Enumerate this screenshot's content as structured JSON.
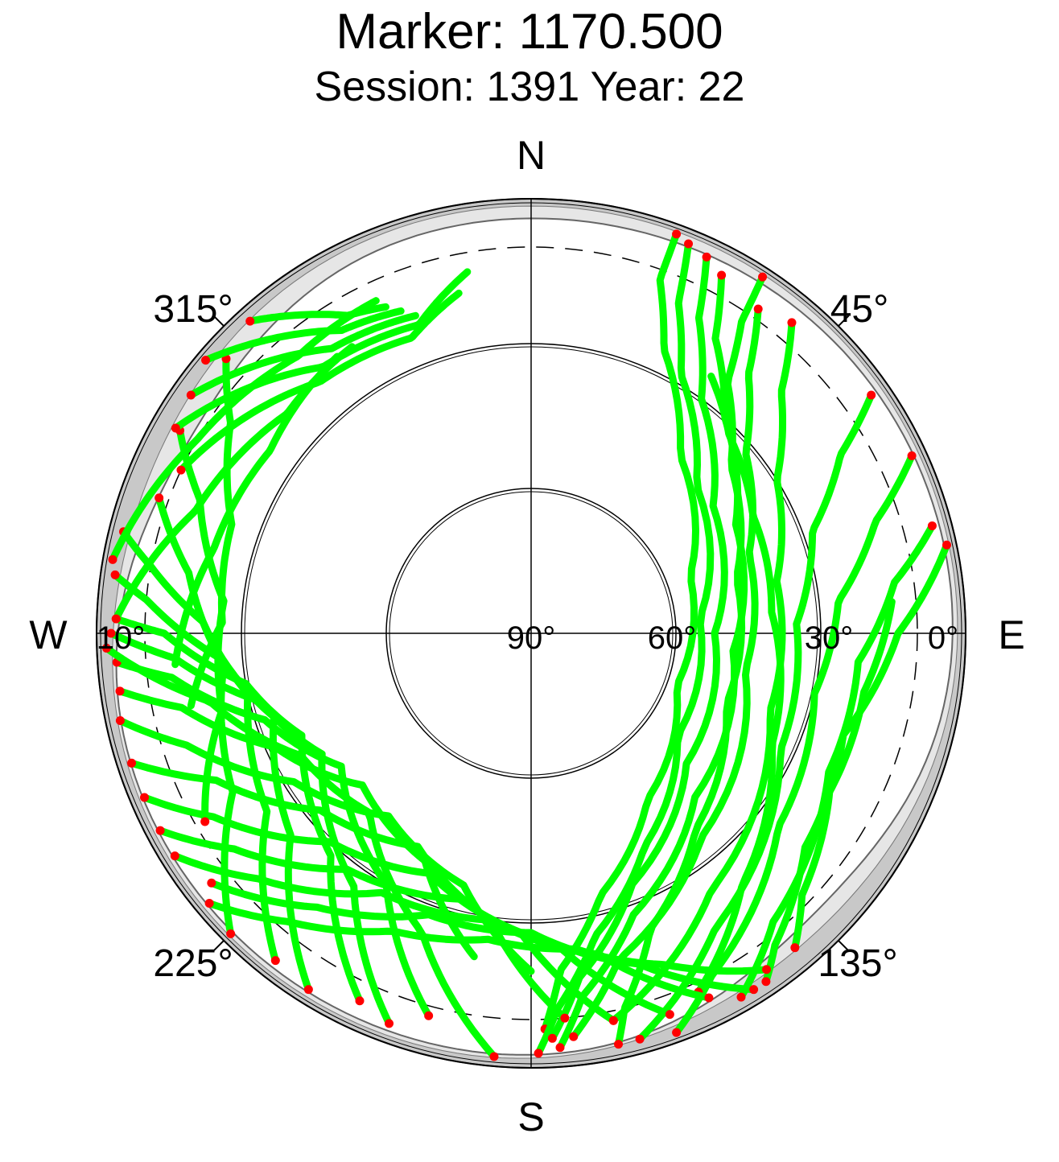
{
  "chart_data": {
    "type": "scatter",
    "subtype": "polar-skyplot",
    "title": "Marker: 1170.500",
    "subtitle": "Session: 1391 Year: 22",
    "cardinals": {
      "north": "N",
      "south": "S",
      "east": "E",
      "west": "W"
    },
    "azimuth_labels": [
      {
        "label": "45°",
        "azimuth": 45
      },
      {
        "label": "135°",
        "azimuth": 135
      },
      {
        "label": "225°",
        "azimuth": 225
      },
      {
        "label": "315°",
        "azimuth": 315
      }
    ],
    "elevation_labels": [
      {
        "label": "0°",
        "elevation": 0
      },
      {
        "label": "30°",
        "elevation": 30
      },
      {
        "label": "60°",
        "elevation": 60
      },
      {
        "label": "90°",
        "elevation": 90
      },
      {
        "label": "10°",
        "elevation": 10,
        "side": "west"
      }
    ],
    "elevation_range": [
      0,
      90
    ],
    "elevation_rings": [
      30,
      60
    ],
    "cutoff_elevation_dashed": 10,
    "colors": {
      "track": "#00ff00",
      "track_end": "#ff0000",
      "mask_outer": "#c8c8c8",
      "mask_inner": "#e6e6e6",
      "axis": "#000000"
    },
    "series": [
      {
        "name": "",
        "points": [
          [
            20,
            2
          ],
          [
            20,
            12
          ],
          [
            25,
            25
          ],
          [
            40,
            42
          ],
          [
            70,
            55
          ],
          [
            110,
            58
          ],
          [
            145,
            48
          ],
          [
            165,
            34
          ],
          [
            175,
            20
          ],
          [
            178,
            8
          ]
        ]
      },
      {
        "name": "",
        "points": [
          [
            22,
            3
          ],
          [
            24,
            15
          ],
          [
            30,
            28
          ],
          [
            48,
            44
          ],
          [
            85,
            55
          ],
          [
            125,
            53
          ],
          [
            152,
            40
          ],
          [
            168,
            26
          ],
          [
            176,
            12
          ],
          [
            179,
            3
          ]
        ]
      },
      {
        "name": "",
        "points": [
          [
            25,
            4
          ],
          [
            28,
            16
          ],
          [
            36,
            30
          ],
          [
            55,
            44
          ],
          [
            90,
            52
          ],
          [
            130,
            48
          ],
          [
            158,
            34
          ],
          [
            172,
            18
          ],
          [
            177,
            6
          ]
        ]
      },
      {
        "name": "",
        "points": [
          [
            28,
            6
          ],
          [
            32,
            18
          ],
          [
            42,
            30
          ],
          [
            62,
            42
          ],
          [
            95,
            48
          ],
          [
            135,
            42
          ],
          [
            160,
            28
          ],
          [
            172,
            14
          ],
          [
            176,
            4
          ]
        ]
      },
      {
        "name": "",
        "points": [
          [
            35,
            8
          ],
          [
            40,
            20
          ],
          [
            50,
            32
          ],
          [
            70,
            42
          ],
          [
            100,
            45
          ],
          [
            140,
            35
          ],
          [
            165,
            20
          ],
          [
            174,
            6
          ]
        ]
      },
      {
        "name": "",
        "points": [
          [
            40,
            6
          ],
          [
            46,
            18
          ],
          [
            58,
            30
          ],
          [
            78,
            38
          ],
          [
            108,
            38
          ],
          [
            145,
            25
          ],
          [
            168,
            8
          ]
        ]
      },
      {
        "name": "",
        "points": [
          [
            55,
            4
          ],
          [
            60,
            16
          ],
          [
            70,
            28
          ],
          [
            88,
            35
          ],
          [
            115,
            33
          ],
          [
            148,
            18
          ],
          [
            165,
            3
          ]
        ]
      },
      {
        "name": "",
        "points": [
          [
            65,
            3
          ],
          [
            72,
            15
          ],
          [
            84,
            26
          ],
          [
            102,
            30
          ],
          [
            128,
            25
          ],
          [
            152,
            10
          ],
          [
            160,
            2
          ]
        ]
      },
      {
        "name": "",
        "points": [
          [
            75,
            4
          ],
          [
            82,
            14
          ],
          [
            95,
            22
          ],
          [
            115,
            22
          ],
          [
            140,
            12
          ],
          [
            150,
            3
          ]
        ]
      },
      {
        "name": "",
        "points": [
          [
            35,
            25
          ],
          [
            45,
            32
          ],
          [
            62,
            38
          ],
          [
            85,
            40
          ],
          [
            115,
            35
          ],
          [
            140,
            22
          ],
          [
            155,
            8
          ]
        ]
      },
      {
        "name": "",
        "points": [
          [
            33,
            2
          ],
          [
            34,
            12
          ],
          [
            38,
            24
          ],
          [
            50,
            36
          ],
          [
            75,
            46
          ],
          [
            110,
            47
          ],
          [
            140,
            37
          ],
          [
            158,
            24
          ],
          [
            166,
            10
          ],
          [
            168,
            3
          ]
        ]
      },
      {
        "name": "",
        "points": [
          [
            78,
            2
          ],
          [
            90,
            14
          ],
          [
            108,
            22
          ],
          [
            128,
            18
          ],
          [
            142,
            8
          ],
          [
            146,
            3
          ]
        ]
      },
      {
        "name": "",
        "points": [
          [
            85,
            15
          ],
          [
            100,
            20
          ],
          [
            118,
            20
          ],
          [
            134,
            12
          ],
          [
            140,
            5
          ]
        ]
      },
      {
        "name": "",
        "points": [
          [
            145,
            5
          ],
          [
            158,
            16
          ],
          [
            172,
            24
          ],
          [
            188,
            26
          ],
          [
            205,
            22
          ],
          [
            220,
            12
          ],
          [
            230,
            3
          ]
        ]
      },
      {
        "name": "",
        "points": [
          [
            148,
            3
          ],
          [
            162,
            18
          ],
          [
            180,
            28
          ],
          [
            200,
            28
          ],
          [
            218,
            18
          ],
          [
            232,
            6
          ]
        ]
      },
      {
        "name": "",
        "points": [
          [
            154,
            6
          ],
          [
            168,
            22
          ],
          [
            188,
            30
          ],
          [
            210,
            28
          ],
          [
            228,
            14
          ],
          [
            238,
            3
          ]
        ]
      },
      {
        "name": "",
        "points": [
          [
            160,
            6
          ],
          [
            175,
            25
          ],
          [
            195,
            33
          ],
          [
            218,
            28
          ],
          [
            234,
            14
          ],
          [
            242,
            3
          ]
        ]
      },
      {
        "name": "",
        "points": [
          [
            168,
            8
          ],
          [
            182,
            28
          ],
          [
            203,
            36
          ],
          [
            224,
            30
          ],
          [
            240,
            14
          ],
          [
            247,
            3
          ]
        ]
      },
      {
        "name": "",
        "points": [
          [
            175,
            10
          ],
          [
            188,
            30
          ],
          [
            208,
            40
          ],
          [
            230,
            33
          ],
          [
            245,
            18
          ],
          [
            252,
            3
          ]
        ]
      },
      {
        "name": "",
        "points": [
          [
            180,
            20
          ],
          [
            195,
            36
          ],
          [
            218,
            42
          ],
          [
            238,
            32
          ],
          [
            252,
            15
          ],
          [
            258,
            3
          ]
        ]
      },
      {
        "name": "",
        "points": [
          [
            190,
            22
          ],
          [
            205,
            38
          ],
          [
            228,
            43
          ],
          [
            246,
            32
          ],
          [
            258,
            16
          ],
          [
            262,
            4
          ]
        ]
      },
      {
        "name": "",
        "points": [
          [
            195,
            8
          ],
          [
            210,
            30
          ],
          [
            235,
            42
          ],
          [
            252,
            32
          ],
          [
            263,
            15
          ],
          [
            266,
            4
          ]
        ]
      },
      {
        "name": "",
        "points": [
          [
            185,
            2
          ],
          [
            200,
            24
          ],
          [
            222,
            40
          ],
          [
            242,
            36
          ],
          [
            258,
            22
          ],
          [
            266,
            6
          ],
          [
            268,
            2
          ]
        ]
      },
      {
        "name": "",
        "points": [
          [
            200,
            4
          ],
          [
            215,
            26
          ],
          [
            240,
            40
          ],
          [
            256,
            32
          ],
          [
            266,
            16
          ],
          [
            270,
            3
          ]
        ]
      },
      {
        "name": "",
        "points": [
          [
            205,
            6
          ],
          [
            222,
            28
          ],
          [
            246,
            38
          ],
          [
            260,
            30
          ],
          [
            270,
            14
          ],
          [
            272,
            4
          ]
        ]
      },
      {
        "name": "",
        "points": [
          [
            212,
            3
          ],
          [
            230,
            25
          ],
          [
            252,
            34
          ],
          [
            265,
            26
          ],
          [
            275,
            10
          ],
          [
            278,
            3
          ]
        ]
      },
      {
        "name": "",
        "points": [
          [
            218,
            4
          ],
          [
            236,
            24
          ],
          [
            258,
            30
          ],
          [
            272,
            22
          ],
          [
            280,
            10
          ],
          [
            284,
            3
          ]
        ]
      },
      {
        "name": "",
        "points": [
          [
            225,
            2
          ],
          [
            242,
            20
          ],
          [
            264,
            26
          ],
          [
            280,
            18
          ],
          [
            290,
            8
          ]
        ]
      },
      {
        "name": "",
        "points": [
          [
            240,
            12
          ],
          [
            256,
            24
          ],
          [
            276,
            26
          ],
          [
            292,
            16
          ],
          [
            300,
            6
          ]
        ]
      },
      {
        "name": "",
        "points": [
          [
            258,
            18
          ],
          [
            272,
            26
          ],
          [
            290,
            24
          ],
          [
            305,
            14
          ],
          [
            312,
            5
          ]
        ]
      },
      {
        "name": "",
        "points": [
          [
            300,
            5
          ],
          [
            322,
            20
          ],
          [
            340,
            22
          ],
          [
            350,
            14
          ]
        ]
      },
      {
        "name": "",
        "points": [
          [
            305,
            4
          ],
          [
            325,
            18
          ],
          [
            340,
            20
          ]
        ]
      },
      {
        "name": "",
        "points": [
          [
            310,
            2
          ],
          [
            328,
            16
          ],
          [
            338,
            18
          ]
        ]
      },
      {
        "name": "",
        "points": [
          [
            318,
            3
          ],
          [
            330,
            14
          ],
          [
            336,
            16
          ]
        ]
      },
      {
        "name": "",
        "points": [
          [
            295,
            10
          ],
          [
            320,
            22
          ],
          [
            338,
            24
          ],
          [
            348,
            18
          ]
        ]
      },
      {
        "name": "",
        "points": [
          [
            280,
            2
          ],
          [
            300,
            10
          ],
          [
            320,
            15
          ],
          [
            335,
            14
          ]
        ]
      },
      {
        "name": "",
        "points": [
          [
            272,
            4
          ],
          [
            290,
            16
          ],
          [
            312,
            22
          ],
          [
            328,
            20
          ]
        ]
      },
      {
        "name": "",
        "points": [
          [
            265,
            16
          ],
          [
            285,
            22
          ],
          [
            305,
            24
          ],
          [
            325,
            20
          ]
        ]
      }
    ]
  }
}
